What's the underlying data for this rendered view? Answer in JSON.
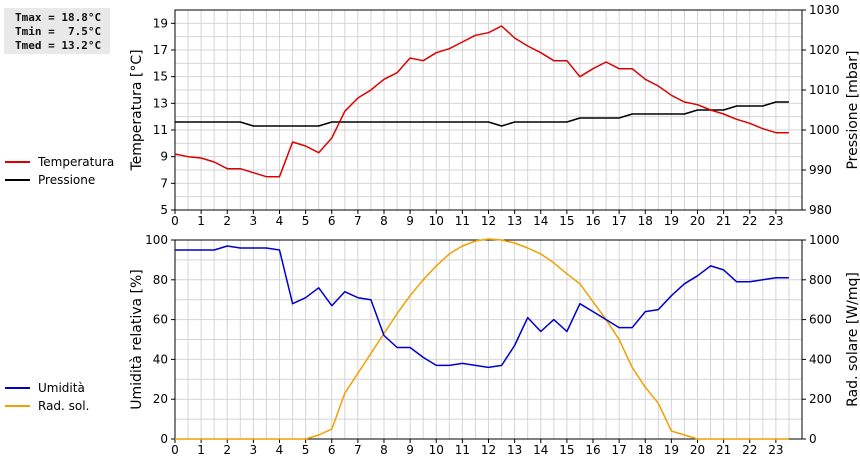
{
  "stats": {
    "tmax": "Tmax = 18.8°C",
    "tmin": "Tmin =  7.5°C",
    "tmed": "Tmed = 13.2°C"
  },
  "chart_data": [
    {
      "type": "line",
      "xlabel": "",
      "ylabel": "Temperatura [°C]",
      "ylabel_right": "Pressione [mbar]",
      "xlim": [
        0,
        24
      ],
      "xticks": [
        0,
        1,
        2,
        3,
        4,
        5,
        6,
        7,
        8,
        9,
        10,
        11,
        12,
        13,
        14,
        15,
        16,
        17,
        18,
        19,
        20,
        21,
        22,
        23
      ],
      "ylim": [
        5,
        20
      ],
      "yticks": [
        5,
        7,
        9,
        11,
        13,
        15,
        17,
        19
      ],
      "ylim_right": [
        980,
        1030
      ],
      "yticks_right": [
        980,
        990,
        1000,
        1010,
        1020,
        1030
      ],
      "grid": true,
      "legend": "left",
      "series": [
        {
          "name": "Temperatura",
          "axis": "left",
          "color": "#dd0000",
          "x": [
            0,
            0.5,
            1,
            1.5,
            2,
            2.5,
            3,
            3.5,
            4,
            4.5,
            5,
            5.5,
            6,
            6.5,
            7,
            7.5,
            8,
            8.5,
            9,
            9.5,
            10,
            10.5,
            11,
            11.5,
            12,
            12.5,
            13,
            13.5,
            14,
            14.5,
            15,
            15.5,
            16,
            16.5,
            17,
            17.5,
            18,
            18.5,
            19,
            19.5,
            20,
            20.5,
            21,
            21.5,
            22,
            22.5,
            23,
            23.5
          ],
          "values": [
            9.2,
            9.0,
            8.9,
            8.6,
            8.1,
            8.1,
            7.8,
            7.5,
            7.5,
            10.1,
            9.8,
            9.3,
            10.4,
            12.4,
            13.4,
            14.0,
            14.8,
            15.3,
            16.4,
            16.2,
            16.8,
            17.1,
            17.6,
            18.1,
            18.3,
            18.8,
            17.9,
            17.3,
            16.8,
            16.2,
            16.2,
            15.0,
            15.6,
            16.1,
            15.6,
            15.6,
            14.8,
            14.3,
            13.6,
            13.1,
            12.9,
            12.5,
            12.2,
            11.8,
            11.5,
            11.1,
            10.8,
            10.8
          ]
        },
        {
          "name": "Pressione",
          "axis": "right",
          "color": "#000000",
          "x": [
            0,
            0.5,
            1,
            1.5,
            2,
            2.5,
            3,
            3.5,
            4,
            4.5,
            5,
            5.5,
            6,
            6.5,
            7,
            7.5,
            8,
            8.5,
            9,
            9.5,
            10,
            10.5,
            11,
            11.5,
            12,
            12.5,
            13,
            13.5,
            14,
            14.5,
            15,
            15.5,
            16,
            16.5,
            17,
            17.5,
            18,
            18.5,
            19,
            19.5,
            20,
            20.5,
            21,
            21.5,
            22,
            22.5,
            23,
            23.5
          ],
          "values": [
            1002,
            1002,
            1002,
            1002,
            1002,
            1002,
            1001,
            1001,
            1001,
            1001,
            1001,
            1001,
            1002,
            1002,
            1002,
            1002,
            1002,
            1002,
            1002,
            1002,
            1002,
            1002,
            1002,
            1002,
            1002,
            1001,
            1002,
            1002,
            1002,
            1002,
            1002,
            1003,
            1003,
            1003,
            1003,
            1004,
            1004,
            1004,
            1004,
            1004,
            1005,
            1005,
            1005,
            1006,
            1006,
            1006,
            1007,
            1007
          ]
        }
      ]
    },
    {
      "type": "line",
      "xlabel": "",
      "ylabel": "Umidità relativa [%]",
      "ylabel_right": "Rad. solare [W/mq]",
      "xlim": [
        0,
        24
      ],
      "xticks": [
        0,
        1,
        2,
        3,
        4,
        5,
        6,
        7,
        8,
        9,
        10,
        11,
        12,
        13,
        14,
        15,
        16,
        17,
        18,
        19,
        20,
        21,
        22,
        23
      ],
      "ylim": [
        0,
        100
      ],
      "yticks": [
        0,
        20,
        40,
        60,
        80,
        100
      ],
      "ylim_right": [
        0,
        1000
      ],
      "yticks_right": [
        0,
        200,
        400,
        600,
        800,
        1000
      ],
      "grid": true,
      "legend": "left",
      "series": [
        {
          "name": "Umidità",
          "axis": "left",
          "color": "#0000cc",
          "x": [
            0,
            0.5,
            1,
            1.5,
            2,
            2.5,
            3,
            3.5,
            4,
            4.5,
            5,
            5.5,
            6,
            6.5,
            7,
            7.5,
            8,
            8.5,
            9,
            9.5,
            10,
            10.5,
            11,
            11.5,
            12,
            12.5,
            13,
            13.5,
            14,
            14.5,
            15,
            15.5,
            16,
            16.5,
            17,
            17.5,
            18,
            18.5,
            19,
            19.5,
            20,
            20.5,
            21,
            21.5,
            22,
            22.5,
            23,
            23.5
          ],
          "values": [
            95,
            95,
            95,
            95,
            97,
            96,
            96,
            96,
            95,
            68,
            71,
            76,
            67,
            74,
            71,
            70,
            52,
            46,
            46,
            41,
            37,
            37,
            38,
            37,
            36,
            37,
            47,
            61,
            54,
            60,
            54,
            68,
            64,
            60,
            56,
            56,
            64,
            65,
            72,
            78,
            82,
            87,
            85,
            79,
            79,
            80,
            81,
            81
          ]
        },
        {
          "name": "Rad. sol.",
          "axis": "right",
          "color": "#f0a000",
          "x": [
            0,
            0.5,
            1,
            1.5,
            2,
            2.5,
            3,
            3.5,
            4,
            4.5,
            5,
            5.5,
            6,
            6.5,
            7,
            7.5,
            8,
            8.5,
            9,
            9.5,
            10,
            10.5,
            11,
            11.5,
            12,
            12.5,
            13,
            13.5,
            14,
            14.5,
            15,
            15.5,
            16,
            16.5,
            17,
            17.5,
            18,
            18.5,
            19,
            19.5,
            20,
            20.5,
            21,
            21.5,
            22,
            22.5,
            23,
            23.5
          ],
          "values": [
            0,
            0,
            0,
            0,
            0,
            0,
            0,
            0,
            0,
            0,
            0,
            20,
            50,
            230,
            330,
            430,
            530,
            630,
            720,
            800,
            870,
            930,
            970,
            995,
            1005,
            1000,
            985,
            960,
            930,
            885,
            830,
            780,
            690,
            600,
            500,
            360,
            260,
            180,
            40,
            20,
            0,
            0,
            0,
            0,
            0,
            0,
            0,
            0
          ]
        }
      ]
    }
  ]
}
